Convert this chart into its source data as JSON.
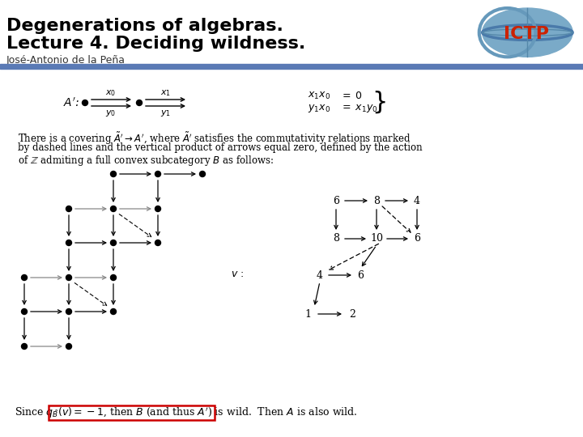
{
  "title_line1": "Degenerations of algebras.",
  "title_line2": "Lecture 4. Deciding wildness.",
  "author": "José-Antonio de la Peña",
  "body_bg": "#ffffff",
  "body_text_color": "#000000",
  "separator_color": "#5a7ab5",
  "red_box_color": "#cc0000"
}
